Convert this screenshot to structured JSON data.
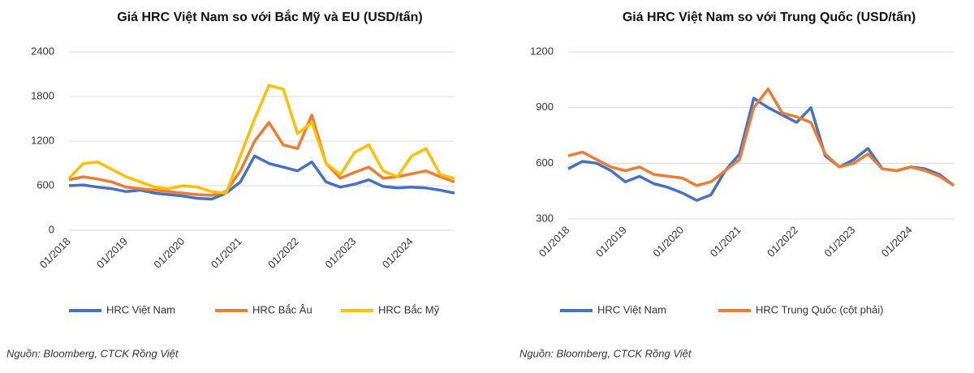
{
  "chart_data": [
    {
      "type": "line",
      "title": "Giá HRC Việt Nam so với Bắc Mỹ và EU (USD/tấn)",
      "categories": [
        "01/2018",
        null,
        null,
        null,
        "01/2019",
        null,
        null,
        null,
        "01/2020",
        null,
        null,
        null,
        "01/2021",
        null,
        null,
        null,
        "01/2022",
        null,
        null,
        null,
        "01/2023",
        null,
        null,
        null,
        "01/2024",
        null,
        null,
        null
      ],
      "ylim": [
        0,
        2400
      ],
      "yticks": [
        0,
        600,
        1200,
        1800,
        2400
      ],
      "grid": true,
      "series": [
        {
          "name": "HRC Việt Nam",
          "color": "#4472c4",
          "values": [
            600,
            610,
            580,
            560,
            520,
            540,
            500,
            480,
            460,
            430,
            420,
            500,
            650,
            1000,
            900,
            850,
            800,
            920,
            650,
            580,
            620,
            680,
            590,
            570,
            580,
            570,
            540,
            500
          ]
        },
        {
          "name": "HRC Bắc Âu",
          "color": "#ed7d31",
          "values": [
            680,
            720,
            690,
            650,
            580,
            560,
            540,
            520,
            500,
            480,
            470,
            520,
            800,
            1200,
            1450,
            1150,
            1100,
            1550,
            900,
            700,
            780,
            850,
            700,
            720,
            760,
            800,
            720,
            650
          ]
        },
        {
          "name": "HRC Bắc Mỹ",
          "color": "#ffc000",
          "values": [
            700,
            900,
            920,
            820,
            720,
            650,
            580,
            560,
            600,
            580,
            520,
            500,
            1000,
            1500,
            1950,
            1900,
            1300,
            1450,
            900,
            750,
            1050,
            1150,
            800,
            720,
            1000,
            1100,
            750,
            700
          ]
        }
      ],
      "source": "Nguồn: Bloomberg, CTCK Rồng Việt"
    },
    {
      "type": "line",
      "title": "Giá HRC Việt Nam so với Trung Quốc (USD/tấn)",
      "categories": [
        "01/2018",
        null,
        null,
        null,
        "01/2019",
        null,
        null,
        null,
        "01/2020",
        null,
        null,
        null,
        "01/2021",
        null,
        null,
        null,
        "01/2022",
        null,
        null,
        null,
        "01/2023",
        null,
        null,
        null,
        "01/2024",
        null,
        null,
        null
      ],
      "ylim": [
        300,
        1200
      ],
      "yticks": [
        300,
        600,
        900,
        1200
      ],
      "grid": true,
      "series": [
        {
          "name": "HRC Việt Nam",
          "color": "#4472c4",
          "values": [
            570,
            610,
            600,
            560,
            500,
            530,
            490,
            470,
            440,
            400,
            430,
            560,
            650,
            950,
            900,
            860,
            820,
            900,
            640,
            580,
            620,
            680,
            570,
            560,
            580,
            570,
            540,
            480
          ]
        },
        {
          "name": "HRC Trung Quốc (cột phải)",
          "color": "#ed7d31",
          "values": [
            640,
            660,
            620,
            580,
            560,
            580,
            540,
            530,
            520,
            480,
            500,
            560,
            620,
            900,
            1000,
            870,
            850,
            820,
            650,
            580,
            600,
            650,
            570,
            560,
            580,
            560,
            530,
            480
          ]
        }
      ],
      "source": "Nguồn: Bloomberg, CTCK Rồng Việt"
    }
  ]
}
